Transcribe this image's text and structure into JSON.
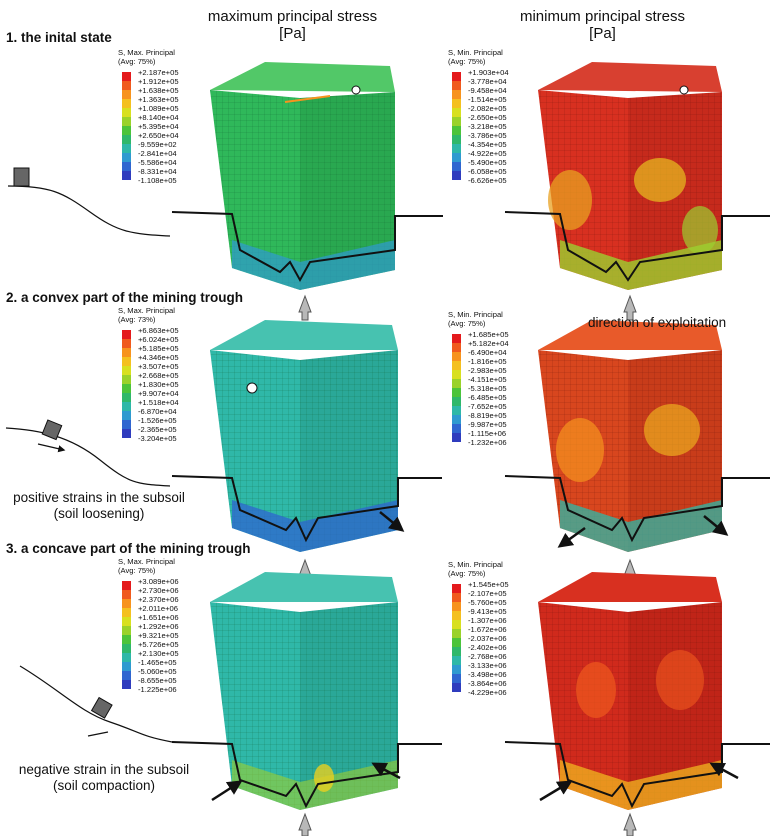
{
  "headings": {
    "max_title": "maximum principal stress",
    "max_unit": "[Pa]",
    "min_title": "minimum principal stress",
    "min_unit": "[Pa]"
  },
  "rows": [
    {
      "title": "1.  the inital state"
    },
    {
      "title": "2.  a convex part of the mining trough"
    },
    {
      "title": "3.  a concave part of the mining trough"
    }
  ],
  "annotations": {
    "direction": "direction of exploitation",
    "positive_line1": "positive strains in the subsoil",
    "positive_line2": "(soil loosening)",
    "negative_line1": "negative strain in the subsoil",
    "negative_line2": "(soil compaction)"
  },
  "legend_colors": [
    "#e41a1c",
    "#f05a1e",
    "#f7931e",
    "#f4c020",
    "#d8e020",
    "#9ad22a",
    "#4cc43a",
    "#2fb86a",
    "#2eb8a8",
    "#2f9ad0",
    "#2f66d0",
    "#2f3cbe"
  ],
  "legends": [
    {
      "title": "S, Max. Principal",
      "avg": "(Avg: 75%)",
      "values": [
        "+2.187e+05",
        "+1.912e+05",
        "+1.638e+05",
        "+1.363e+05",
        "+1.089e+05",
        "+8.140e+04",
        "+5.395e+04",
        "+2.650e+04",
        "-9.559e+02",
        "-2.841e+04",
        "-5.586e+04",
        "-8.331e+04",
        "-1.108e+05"
      ]
    },
    {
      "title": "S, Min. Principal",
      "avg": "(Avg: 75%)",
      "values": [
        "+1.903e+04",
        "-3.778e+04",
        "-9.458e+04",
        "-1.514e+05",
        "-2.082e+05",
        "-2.650e+05",
        "-3.218e+05",
        "-3.786e+05",
        "-4.354e+05",
        "-4.922e+05",
        "-5.490e+05",
        "-6.058e+05",
        "-6.626e+05"
      ]
    },
    {
      "title": "S, Max. Principal",
      "avg": "(Avg: 73%)",
      "values": [
        "+6.863e+05",
        "+6.024e+05",
        "+5.185e+05",
        "+4.346e+05",
        "+3.507e+05",
        "+2.668e+05",
        "+1.830e+05",
        "+9.907e+04",
        "+1.518e+04",
        "-6.870e+04",
        "-1.526e+05",
        "-2.365e+05",
        "-3.204e+05"
      ]
    },
    {
      "title": "S, Min. Principal",
      "avg": "(Avg: 75%)",
      "values": [
        "+1.685e+05",
        "+5.182e+04",
        "-6.490e+04",
        "-1.816e+05",
        "-2.983e+05",
        "-4.151e+05",
        "-5.318e+05",
        "-6.485e+05",
        "-7.652e+05",
        "-8.819e+05",
        "-9.987e+05",
        "-1.115e+06",
        "-1.232e+06"
      ]
    },
    {
      "title": "S, Max. Principal",
      "avg": "(Avg: 75%)",
      "values": [
        "+3.089e+06",
        "+2.730e+06",
        "+2.370e+06",
        "+2.011e+06",
        "+1.651e+06",
        "+1.292e+06",
        "+9.321e+05",
        "+5.726e+05",
        "+2.130e+05",
        "-1.465e+05",
        "-5.060e+05",
        "-8.655e+05",
        "-1.225e+06"
      ]
    },
    {
      "title": "S, Min. Principal",
      "avg": "(Avg: 75%)",
      "values": [
        "+1.545e+05",
        "-2.107e+05",
        "-5.760e+05",
        "-9.413e+05",
        "-1.307e+06",
        "-1.672e+06",
        "-2.037e+06",
        "-2.402e+06",
        "-2.768e+06",
        "-3.133e+06",
        "-3.498e+06",
        "-3.864e+06",
        "-4.229e+06"
      ]
    }
  ],
  "model_colors": {
    "max_initial": "#2fb85a",
    "max_loaded": "#2fb8a0",
    "min_body": "#d83020",
    "min_patch": "#9ccf30",
    "bottom_blue": "#2f66d0",
    "bottom_yellow": "#e8d020"
  }
}
